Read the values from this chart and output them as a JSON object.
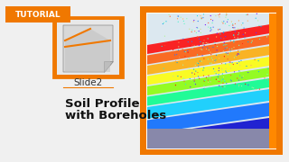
{
  "bg_color": "#f0f0f0",
  "tutorial_bg": "#f07800",
  "tutorial_text": "TUTORIAL",
  "tutorial_text_color": "#ffffff",
  "title_line1": "Soil Profile",
  "title_line2": "with Boreholes",
  "subtitle": "Slide2",
  "orange_border": "#f07800",
  "icon_bg": "#e8e8e8",
  "icon_border": "#f07800",
  "right_panel_bg": "#ffffff",
  "right_border": "#f07800"
}
